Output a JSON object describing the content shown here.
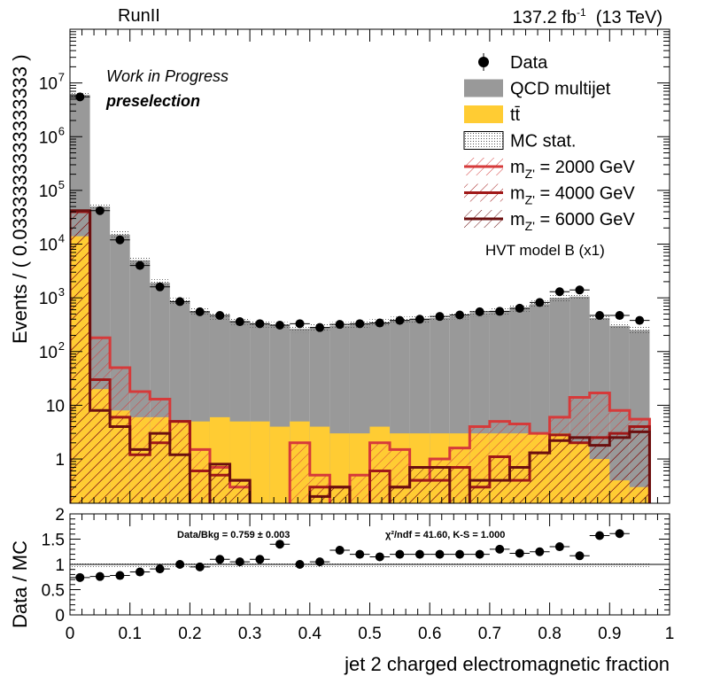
{
  "chart_data": {
    "type": "bar",
    "top_left_label": "RunII",
    "lumi": {
      "value": "137.2 fb",
      "exp": "-1",
      "energy": "(13 TeV)"
    },
    "annotations": {
      "status": "Work in Progress",
      "region": "preselection",
      "model": "HVT model B (x1)"
    },
    "ylabel": "Events / ( 0.0333333333333333 )",
    "xlabel": "jet 2 charged electromagnetic fraction",
    "ratio_ylabel": "Data / MC",
    "log_y": true,
    "ylim": [
      0.15,
      100000000
    ],
    "xlim": [
      0,
      1
    ],
    "bin_width": 0.0333333,
    "bin_edges_start": 0,
    "colors": {
      "qcd": "#999999",
      "ttbar": "#ffcc33",
      "sig1": "#d63a3a",
      "sig2": "#a01818",
      "sig3": "#6b0f0f"
    },
    "series": [
      {
        "key": "qcd",
        "name": "QCD multijet",
        "kind": "stack",
        "values": [
          6000000,
          50000,
          15000,
          5000,
          1900,
          850,
          550,
          450,
          360,
          320,
          300,
          260,
          280,
          300,
          320,
          340,
          380,
          400,
          420,
          460,
          520,
          560,
          640,
          760,
          1000,
          1050,
          420,
          300,
          250,
          0
        ]
      },
      {
        "key": "ttbar",
        "name": "tt̄",
        "kind": "stack",
        "values": [
          14000,
          20,
          8,
          6,
          6,
          5,
          5,
          6,
          5,
          5,
          4,
          5,
          4,
          3,
          3,
          4,
          3,
          3,
          3,
          3,
          3,
          3,
          3,
          3,
          3,
          2,
          1,
          0.4,
          0.3,
          0
        ]
      },
      {
        "key": "sig1",
        "name": "m_Z' = 2000 GeV",
        "kind": "signal",
        "values": [
          40000,
          180,
          50,
          18,
          13,
          5,
          1.5,
          0.7,
          0.3,
          0.1,
          0.1,
          2.0,
          0.5,
          0.1,
          0.5,
          2.0,
          1.5,
          0.4,
          1.0,
          1.6,
          4.0,
          5.0,
          4.5,
          3.0,
          6.0,
          14.0,
          17.0,
          8.0,
          5.5,
          0
        ]
      },
      {
        "key": "sig2",
        "name": "m_Z' = 4000 GeV",
        "kind": "signal",
        "values": [
          40000,
          30,
          6,
          1.2,
          2,
          5,
          0.6,
          0.5,
          0.4,
          0.1,
          0.1,
          0.1,
          0.3,
          0.3,
          0.1,
          0.6,
          0.3,
          0.4,
          0.4,
          0.7,
          0.3,
          1.1,
          0.4,
          1.3,
          2.8,
          2.0,
          2.5,
          3.0,
          4.0,
          0
        ]
      },
      {
        "key": "sig3",
        "name": "m_Z' = 6000 GeV",
        "kind": "signal",
        "values": [
          42000,
          8,
          4,
          1.5,
          3,
          1.2,
          0.1,
          0.8,
          0.4,
          0.1,
          0.1,
          0.1,
          0.2,
          0.3,
          0.1,
          0.1,
          0.3,
          0.7,
          0.7,
          0.1,
          0.4,
          0.4,
          0.7,
          1.3,
          2.2,
          2.5,
          1.8,
          2.5,
          3.2,
          0
        ]
      },
      {
        "key": "data",
        "name": "Data",
        "kind": "data",
        "values": [
          5500000,
          42000,
          12000,
          4000,
          1600,
          850,
          550,
          470,
          360,
          330,
          310,
          330,
          280,
          320,
          330,
          340,
          380,
          400,
          450,
          480,
          550,
          560,
          640,
          820,
          1300,
          1400,
          470,
          470,
          380,
          null
        ]
      }
    ],
    "legend_extra": "MC stat.",
    "legend_title": "Data",
    "stat_label": "Data/Bkg = 0.759 ± 0.003",
    "chi_label": "χ²/ndf = 41.60,   K-S = 1.000",
    "ratio": {
      "ylim": [
        0,
        2
      ],
      "values": [
        0.74,
        0.76,
        0.78,
        0.85,
        0.91,
        1.0,
        0.95,
        1.1,
        1.05,
        1.1,
        1.4,
        1.0,
        1.05,
        1.28,
        1.2,
        1.15,
        1.2,
        1.2,
        1.2,
        1.2,
        1.2,
        1.3,
        1.22,
        1.25,
        1.35,
        1.17,
        1.57,
        1.61,
        null,
        null
      ],
      "ticks": [
        0,
        0.5,
        1,
        1.5,
        2
      ]
    },
    "x_ticks": [
      "0",
      "0.1",
      "0.2",
      "0.3",
      "0.4",
      "0.5",
      "0.6",
      "0.7",
      "0.8",
      "0.9",
      "1"
    ]
  }
}
